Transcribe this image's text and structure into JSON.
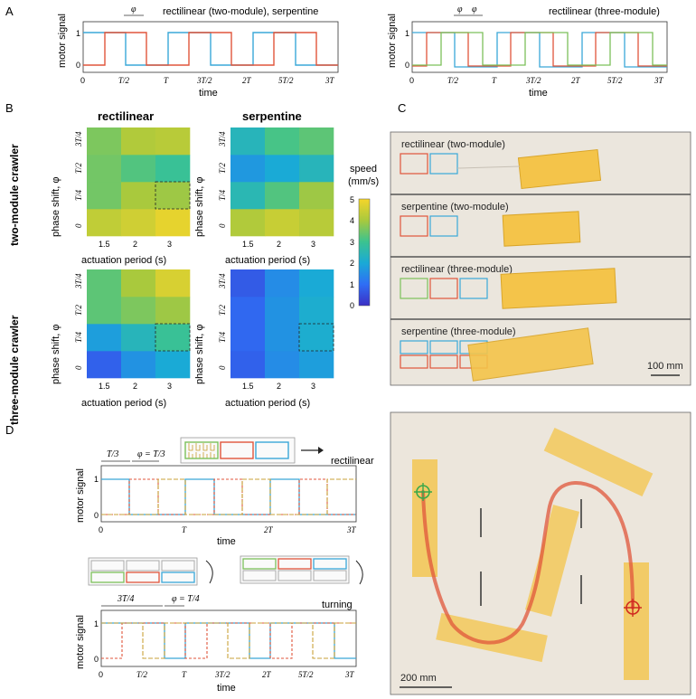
{
  "panels": {
    "A": "A",
    "B": "B",
    "C": "C",
    "D": "D"
  },
  "panelA": {
    "left": {
      "title": "rectilinear (two-module), serpentine",
      "ylabel": "motor signal",
      "xlabel": "time",
      "yticks": [
        "0",
        "1"
      ],
      "xticks": [
        "0",
        "T/2",
        "T",
        "3T/2",
        "2T",
        "5T/2",
        "3T"
      ],
      "phi": "φ"
    },
    "right": {
      "title": "rectilinear (three-module)",
      "ylabel": "motor signal",
      "xlabel": "time",
      "yticks": [
        "0",
        "1"
      ],
      "xticks": [
        "0",
        "T/2",
        "T",
        "3T/2",
        "2T",
        "5T/2",
        "3T"
      ],
      "phi1": "φ",
      "phi2": "φ"
    }
  },
  "panelB": {
    "col_titles": [
      "rectilinear",
      "serpentine"
    ],
    "row_titles": [
      "two-module crawler",
      "three-module crawler"
    ],
    "ylabel": "phase shift, φ",
    "xlabel": "actuation period (s)",
    "xticks": [
      "1.5",
      "2",
      "3"
    ],
    "yticks": [
      "0",
      "T/4",
      "T/2",
      "3T/4"
    ],
    "colorbar": {
      "label1": "speed",
      "label2": "(mm/s)",
      "ticks": [
        "0",
        "1",
        "2",
        "3",
        "4",
        "5"
      ]
    },
    "colors": {
      "c0": "#3b2fc4",
      "c1": "#2f6ef5",
      "c2": "#1aaad6",
      "c3": "#3cc38f",
      "c4": "#a9c93d",
      "c5": "#f5d52a"
    }
  },
  "chart_data": [
    {
      "type": "heatmap",
      "title": "rectilinear",
      "row_group": "two-module crawler",
      "x": [
        "1.5",
        "2",
        "3"
      ],
      "y": [
        "0",
        "T/4",
        "T/2",
        "3T/4"
      ],
      "values": [
        [
          4.3,
          4.5,
          4.8
        ],
        [
          3.5,
          4.0,
          3.9
        ],
        [
          3.5,
          3.2,
          2.9
        ],
        [
          3.6,
          4.1,
          4.2
        ]
      ],
      "zlim": [
        0,
        5
      ]
    },
    {
      "type": "heatmap",
      "title": "serpentine",
      "row_group": "two-module crawler",
      "x": [
        "1.5",
        "2",
        "3"
      ],
      "y": [
        "0",
        "T/4",
        "T/2",
        "3T/4"
      ],
      "values": [
        [
          4.1,
          4.4,
          4.2
        ],
        [
          2.5,
          3.2,
          3.9
        ],
        [
          1.7,
          2.0,
          2.4
        ],
        [
          2.4,
          3.1,
          3.3
        ]
      ],
      "zlim": [
        0,
        5
      ]
    },
    {
      "type": "heatmap",
      "title": "rectilinear",
      "row_group": "three-module crawler",
      "x": [
        "1.5",
        "2",
        "3"
      ],
      "y": [
        "0",
        "T/4",
        "T/2",
        "3T/4"
      ],
      "values": [
        [
          0.8,
          1.6,
          2.0
        ],
        [
          1.8,
          2.4,
          2.9
        ],
        [
          3.3,
          3.6,
          3.9
        ],
        [
          3.3,
          4.0,
          4.6
        ]
      ],
      "zlim": [
        0,
        5
      ]
    },
    {
      "type": "heatmap",
      "title": "serpentine",
      "row_group": "three-module crawler",
      "x": [
        "1.5",
        "2",
        "3"
      ],
      "y": [
        "0",
        "T/4",
        "T/2",
        "3T/4"
      ],
      "values": [
        [
          0.8,
          1.5,
          1.8
        ],
        [
          0.9,
          1.6,
          2.1
        ],
        [
          0.9,
          1.6,
          2.1
        ],
        [
          0.7,
          1.5,
          2.0
        ]
      ],
      "zlim": [
        0,
        5
      ]
    }
  ],
  "panelC": {
    "labels": [
      "rectilinear (two-module)",
      "serpentine (two-module)",
      "rectilinear (three-module)",
      "serpentine (three-module)"
    ],
    "scale": "100 mm"
  },
  "panelD": {
    "top": {
      "label_t3": "T/3",
      "label_phi": "φ = T/3",
      "mode": "rectilinear",
      "ylabel": "motor signal",
      "xlabel": "time",
      "yticks": [
        "0",
        "1"
      ],
      "xticks": [
        "0",
        "T",
        "2T",
        "3T"
      ]
    },
    "bottom": {
      "label_t34": "3T/4",
      "label_phi": "φ = T/4",
      "mode": "turning",
      "ylabel": "motor signal",
      "xlabel": "time",
      "yticks": [
        "0",
        "1"
      ],
      "xticks": [
        "0",
        "T/2",
        "T",
        "3T/2",
        "2T",
        "5T/2",
        "3T"
      ]
    },
    "scale": "200 mm"
  },
  "accent": {
    "red": "#e0553b",
    "blue": "#3aa8d8",
    "green": "#7cc05a",
    "orange": "#e08a3a"
  }
}
